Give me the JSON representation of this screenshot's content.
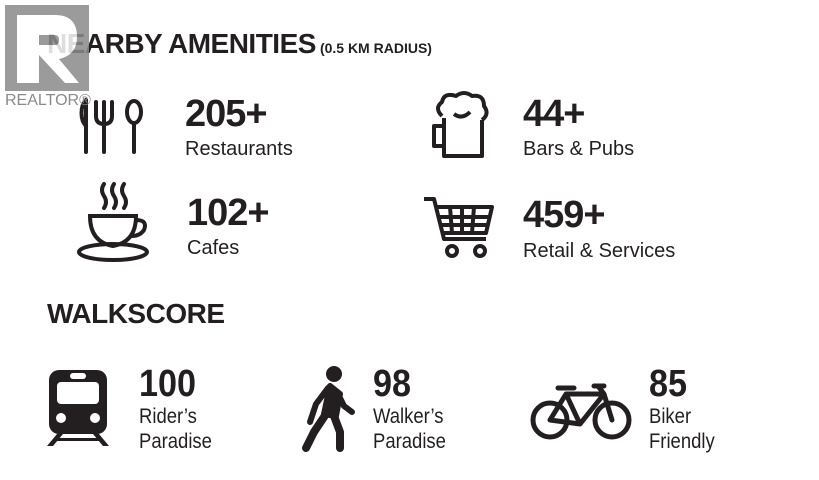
{
  "watermark": {
    "brand": "REALTOR®"
  },
  "amenities": {
    "title": "NEARBY AMENITIES",
    "subtitle": "(0.5 KM RADIUS)",
    "items": [
      {
        "icon": "cutlery-icon",
        "count": "205+",
        "label": "Restaurants"
      },
      {
        "icon": "beer-mug-icon",
        "count": "44+",
        "label": "Bars & Pubs"
      },
      {
        "icon": "coffee-cup-icon",
        "count": "102+",
        "label": "Cafes"
      },
      {
        "icon": "shopping-cart-icon",
        "count": "459+",
        "label": "Retail & Services"
      }
    ]
  },
  "walkscore": {
    "title": "WALKSCORE",
    "items": [
      {
        "icon": "train-icon",
        "score": "100",
        "line1": "Rider’s",
        "line2": "Paradise"
      },
      {
        "icon": "walker-icon",
        "score": "98",
        "line1": "Walker’s",
        "line2": "Paradise"
      },
      {
        "icon": "bicycle-icon",
        "score": "85",
        "line1": "Biker",
        "line2": "Friendly"
      }
    ]
  },
  "colors": {
    "text": "#231f20",
    "watermark": "#8a8a8a"
  }
}
